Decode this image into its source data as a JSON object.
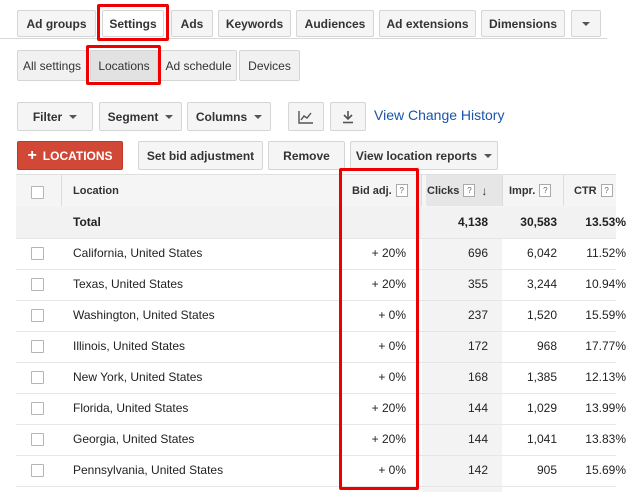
{
  "tabs": [
    {
      "label": "Ad groups"
    },
    {
      "label": "Settings"
    },
    {
      "label": "Ads"
    },
    {
      "label": "Keywords"
    },
    {
      "label": "Audiences"
    },
    {
      "label": "Ad extensions"
    },
    {
      "label": "Dimensions"
    }
  ],
  "subtabs": [
    {
      "label": "All settings"
    },
    {
      "label": "Locations"
    },
    {
      "label": "Ad schedule"
    },
    {
      "label": "Devices"
    }
  ],
  "toolbar": {
    "filter": "Filter",
    "segment": "Segment",
    "columns": "Columns",
    "view_change_history": "View Change History",
    "add_locations": "LOCATIONS",
    "set_bid_adjustment": "Set bid adjustment",
    "remove": "Remove",
    "view_location_reports": "View location reports"
  },
  "table": {
    "headers": {
      "location": "Location",
      "bid_adj": "Bid adj.",
      "clicks": "Clicks",
      "impr": "Impr.",
      "ctr": "CTR",
      "help": "?",
      "sort_arrow": "↓"
    },
    "total": {
      "label": "Total",
      "clicks": "4,138",
      "impr": "30,583",
      "ctr": "13.53%"
    },
    "rows": [
      {
        "location": "California, United States",
        "bid_adj": "+ 20%",
        "clicks": "696",
        "impr": "6,042",
        "ctr": "11.52%"
      },
      {
        "location": "Texas, United States",
        "bid_adj": "+ 20%",
        "clicks": "355",
        "impr": "3,244",
        "ctr": "10.94%"
      },
      {
        "location": "Washington, United States",
        "bid_adj": "+ 0%",
        "clicks": "237",
        "impr": "1,520",
        "ctr": "15.59%"
      },
      {
        "location": "Illinois, United States",
        "bid_adj": "+ 0%",
        "clicks": "172",
        "impr": "968",
        "ctr": "17.77%"
      },
      {
        "location": "New York, United States",
        "bid_adj": "+ 0%",
        "clicks": "168",
        "impr": "1,385",
        "ctr": "12.13%"
      },
      {
        "location": "Florida, United States",
        "bid_adj": "+ 20%",
        "clicks": "144",
        "impr": "1,029",
        "ctr": "13.99%"
      },
      {
        "location": "Georgia, United States",
        "bid_adj": "+ 20%",
        "clicks": "144",
        "impr": "1,041",
        "ctr": "13.83%"
      },
      {
        "location": "Pennsylvania, United States",
        "bid_adj": "+ 0%",
        "clicks": "142",
        "impr": "905",
        "ctr": "15.69%"
      }
    ]
  },
  "colors": {
    "highlight": "#ee0000",
    "add_button": "#d14836",
    "link": "#1a55a8"
  }
}
